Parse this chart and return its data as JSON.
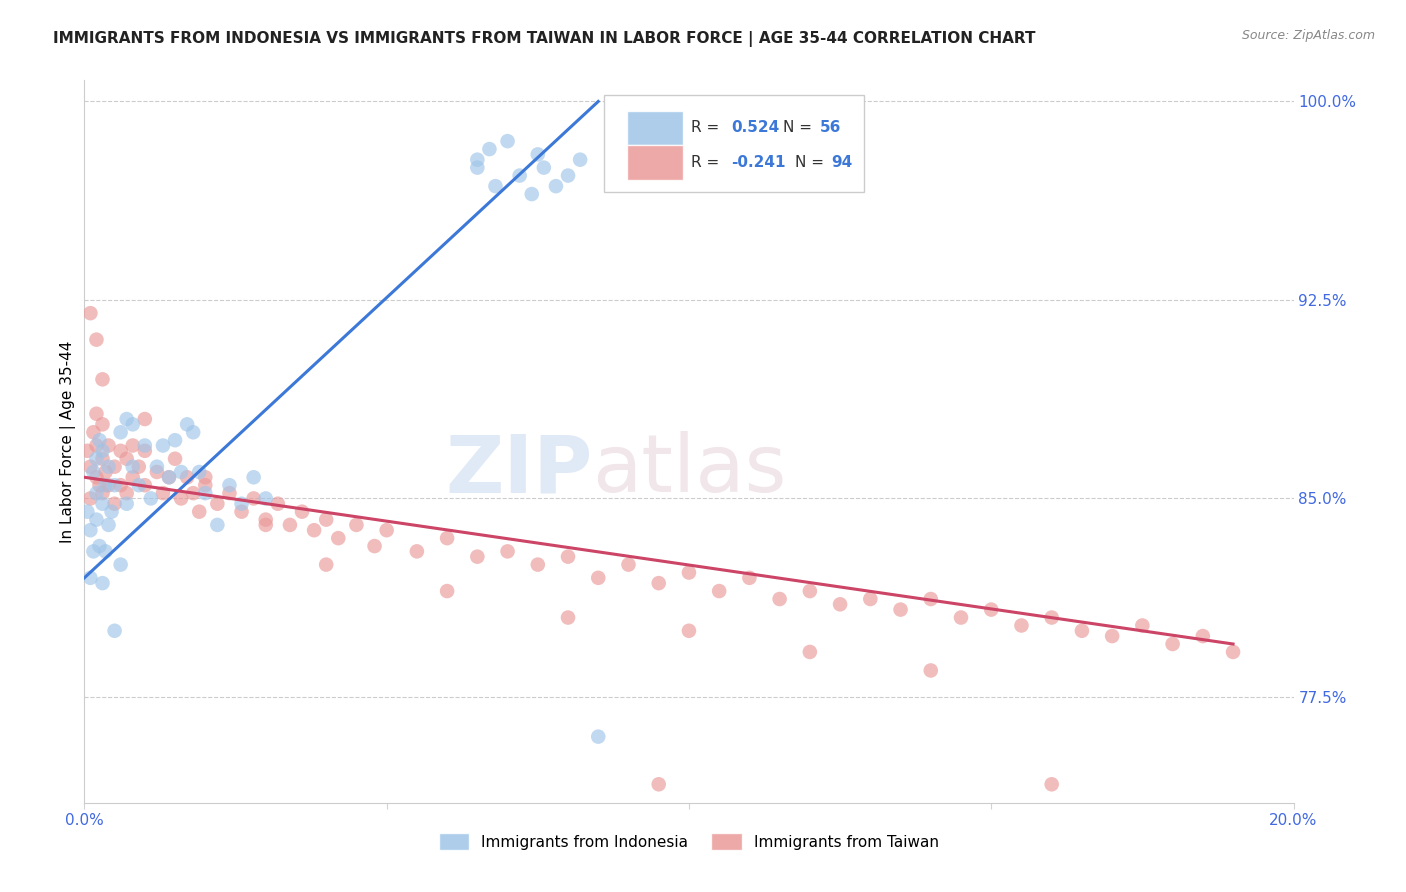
{
  "title": "IMMIGRANTS FROM INDONESIA VS IMMIGRANTS FROM TAIWAN IN LABOR FORCE | AGE 35-44 CORRELATION CHART",
  "source": "Source: ZipAtlas.com",
  "ylabel": "In Labor Force | Age 35-44",
  "xlim": [
    0.0,
    0.2
  ],
  "ylim": [
    0.735,
    1.008
  ],
  "xticks": [
    0.0,
    0.05,
    0.1,
    0.15,
    0.2
  ],
  "xticklabels": [
    "0.0%",
    "",
    "",
    "",
    "20.0%"
  ],
  "yticks_right": [
    0.775,
    0.85,
    0.925,
    1.0
  ],
  "yticklabels_right": [
    "77.5%",
    "85.0%",
    "92.5%",
    "100.0%"
  ],
  "blue_color": "#9fc5e8",
  "pink_color": "#ea9999",
  "blue_line_color": "#3c78d8",
  "pink_line_color": "#cc4466",
  "indonesia_x": [
    0.0005,
    0.001,
    0.001,
    0.0015,
    0.0015,
    0.002,
    0.002,
    0.002,
    0.0025,
    0.0025,
    0.003,
    0.003,
    0.003,
    0.0035,
    0.0035,
    0.004,
    0.004,
    0.0045,
    0.005,
    0.005,
    0.006,
    0.006,
    0.007,
    0.007,
    0.008,
    0.008,
    0.009,
    0.01,
    0.011,
    0.012,
    0.013,
    0.014,
    0.015,
    0.016,
    0.017,
    0.018,
    0.019,
    0.02,
    0.022,
    0.024,
    0.026,
    0.028,
    0.03,
    0.065,
    0.065,
    0.067,
    0.068,
    0.07,
    0.072,
    0.074,
    0.075,
    0.076,
    0.078,
    0.08,
    0.082,
    0.085
  ],
  "indonesia_y": [
    0.845,
    0.838,
    0.82,
    0.86,
    0.83,
    0.842,
    0.852,
    0.865,
    0.832,
    0.872,
    0.818,
    0.848,
    0.868,
    0.83,
    0.855,
    0.84,
    0.862,
    0.845,
    0.8,
    0.855,
    0.825,
    0.875,
    0.848,
    0.88,
    0.862,
    0.878,
    0.855,
    0.87,
    0.85,
    0.862,
    0.87,
    0.858,
    0.872,
    0.86,
    0.878,
    0.875,
    0.86,
    0.852,
    0.84,
    0.855,
    0.848,
    0.858,
    0.85,
    0.975,
    0.978,
    0.982,
    0.968,
    0.985,
    0.972,
    0.965,
    0.98,
    0.975,
    0.968,
    0.972,
    0.978,
    0.76
  ],
  "taiwan_x": [
    0.0005,
    0.001,
    0.001,
    0.0015,
    0.002,
    0.002,
    0.002,
    0.0025,
    0.003,
    0.003,
    0.003,
    0.0035,
    0.004,
    0.004,
    0.005,
    0.005,
    0.006,
    0.006,
    0.007,
    0.007,
    0.008,
    0.008,
    0.009,
    0.01,
    0.01,
    0.012,
    0.013,
    0.014,
    0.015,
    0.016,
    0.017,
    0.018,
    0.019,
    0.02,
    0.022,
    0.024,
    0.026,
    0.028,
    0.03,
    0.032,
    0.034,
    0.036,
    0.038,
    0.04,
    0.042,
    0.045,
    0.048,
    0.05,
    0.055,
    0.06,
    0.065,
    0.07,
    0.075,
    0.08,
    0.085,
    0.09,
    0.095,
    0.1,
    0.105,
    0.11,
    0.115,
    0.12,
    0.125,
    0.13,
    0.135,
    0.14,
    0.145,
    0.15,
    0.155,
    0.16,
    0.165,
    0.17,
    0.175,
    0.18,
    0.185,
    0.19,
    0.001,
    0.002,
    0.003,
    0.01,
    0.02,
    0.03,
    0.04,
    0.06,
    0.08,
    0.1,
    0.12,
    0.14,
    0.095,
    0.16
  ],
  "taiwan_y": [
    0.868,
    0.862,
    0.85,
    0.875,
    0.858,
    0.87,
    0.882,
    0.855,
    0.865,
    0.878,
    0.852,
    0.86,
    0.87,
    0.855,
    0.862,
    0.848,
    0.855,
    0.868,
    0.852,
    0.865,
    0.858,
    0.87,
    0.862,
    0.855,
    0.868,
    0.86,
    0.852,
    0.858,
    0.865,
    0.85,
    0.858,
    0.852,
    0.845,
    0.855,
    0.848,
    0.852,
    0.845,
    0.85,
    0.842,
    0.848,
    0.84,
    0.845,
    0.838,
    0.842,
    0.835,
    0.84,
    0.832,
    0.838,
    0.83,
    0.835,
    0.828,
    0.83,
    0.825,
    0.828,
    0.82,
    0.825,
    0.818,
    0.822,
    0.815,
    0.82,
    0.812,
    0.815,
    0.81,
    0.812,
    0.808,
    0.812,
    0.805,
    0.808,
    0.802,
    0.805,
    0.8,
    0.798,
    0.802,
    0.795,
    0.798,
    0.792,
    0.92,
    0.91,
    0.895,
    0.88,
    0.858,
    0.84,
    0.825,
    0.815,
    0.805,
    0.8,
    0.792,
    0.785,
    0.742,
    0.742
  ]
}
